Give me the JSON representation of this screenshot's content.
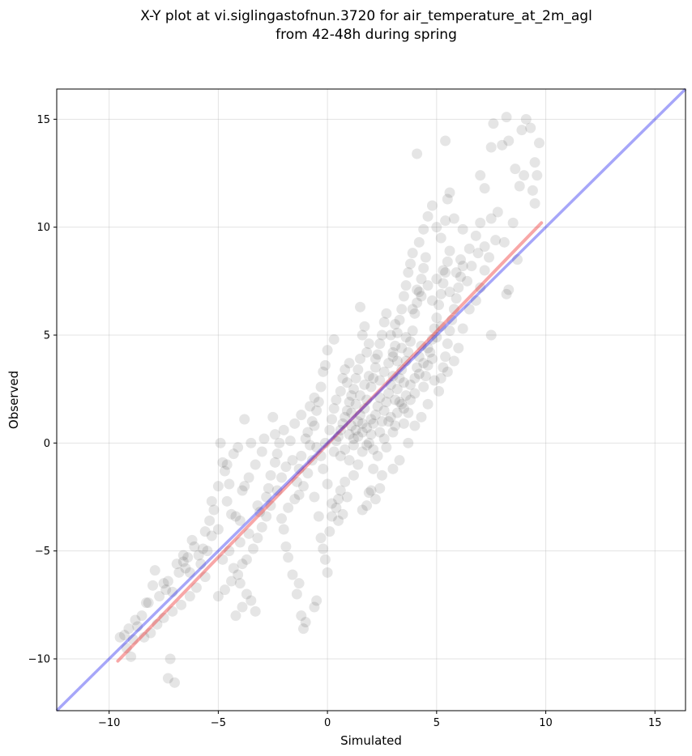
{
  "chart_data": {
    "type": "scatter",
    "title": [
      "X-Y plot at vi.siglingastofnun.3720 for air_temperature_at_2m_agl",
      "from 42-48h during spring"
    ],
    "xlabel": "Simulated",
    "ylabel": "Observed",
    "xlim": [
      -12.4,
      16.4
    ],
    "ylim": [
      -12.4,
      16.4
    ],
    "xticks": [
      -10,
      -5,
      0,
      5,
      10,
      15
    ],
    "yticks": [
      -10,
      -5,
      0,
      5,
      10,
      15
    ],
    "xtick_labels": [
      "−10",
      "−5",
      "0",
      "5",
      "10",
      "15"
    ],
    "ytick_labels": [
      "−10",
      "−5",
      "0",
      "5",
      "10",
      "15"
    ],
    "grid": true,
    "point_color": "#000000",
    "identity_line": {
      "color": "#0000ee",
      "x": [
        -12.4,
        16.4
      ],
      "y": [
        -12.4,
        16.4
      ]
    },
    "fit_line": {
      "color": "#ee2222",
      "x": [
        -9.6,
        9.8
      ],
      "y": [
        -10.1,
        10.2
      ]
    },
    "points": [
      [
        -9.5,
        -9.0
      ],
      [
        -9.3,
        -8.9
      ],
      [
        -9.1,
        -8.6
      ],
      [
        -8.8,
        -8.2
      ],
      [
        -8.7,
        -8.5
      ],
      [
        -9.0,
        -9.9
      ],
      [
        -8.5,
        -8.0
      ],
      [
        -8.2,
        -7.4
      ],
      [
        -8.0,
        -6.6
      ],
      [
        -7.9,
        -5.9
      ],
      [
        -7.5,
        -6.5
      ],
      [
        -7.3,
        -6.4
      ],
      [
        -7.1,
        -6.9
      ],
      [
        -7.2,
        -10.0
      ],
      [
        -7.3,
        -10.9
      ],
      [
        -7.0,
        -11.1
      ],
      [
        -6.9,
        -5.6
      ],
      [
        -6.6,
        -5.5
      ],
      [
        -6.4,
        -5.3
      ],
      [
        -6.2,
        -4.5
      ],
      [
        -6.1,
        -4.8
      ],
      [
        -5.9,
        -5.2
      ],
      [
        -5.7,
        -4.9
      ],
      [
        -5.5,
        -5.0
      ],
      [
        -5.3,
        -4.3
      ],
      [
        -5.0,
        -4.0
      ],
      [
        -5.3,
        -2.7
      ],
      [
        -5.2,
        -3.1
      ],
      [
        -5.0,
        -2.0
      ],
      [
        -4.9,
        0.0
      ],
      [
        -4.7,
        -1.3
      ],
      [
        -4.6,
        -1.0
      ],
      [
        -4.4,
        -3.3
      ],
      [
        -4.2,
        -3.4
      ],
      [
        -4.0,
        -3.6
      ],
      [
        -3.8,
        -2.0
      ],
      [
        -3.9,
        -2.2
      ],
      [
        -3.6,
        -1.6
      ],
      [
        -4.3,
        -0.5
      ],
      [
        -4.1,
        -0.2
      ],
      [
        -3.5,
        0.0
      ],
      [
        -3.8,
        1.1
      ],
      [
        -3.6,
        -4.2
      ],
      [
        -4.0,
        -4.6
      ],
      [
        -4.3,
        -5.8
      ],
      [
        -4.0,
        -6.5
      ],
      [
        -3.7,
        -7.0
      ],
      [
        -3.5,
        -7.3
      ],
      [
        -3.3,
        -7.8
      ],
      [
        -3.9,
        -7.6
      ],
      [
        -4.2,
        -8.0
      ],
      [
        -3.2,
        -2.9
      ],
      [
        -3.1,
        -3.2
      ],
      [
        -2.8,
        -2.5
      ],
      [
        -2.7,
        -2.1
      ],
      [
        -2.6,
        -1.5
      ],
      [
        -2.4,
        -0.9
      ],
      [
        -2.3,
        -0.5
      ],
      [
        -2.2,
        0.0
      ],
      [
        -2.5,
        1.2
      ],
      [
        -2.4,
        0.4
      ],
      [
        -2.1,
        -3.5
      ],
      [
        -2.0,
        -4.0
      ],
      [
        -1.9,
        -4.8
      ],
      [
        -1.8,
        -5.3
      ],
      [
        -1.6,
        -6.1
      ],
      [
        -1.4,
        -7.0
      ],
      [
        -1.3,
        -6.5
      ],
      [
        -1.2,
        -8.0
      ],
      [
        -1.1,
        -8.6
      ],
      [
        -1.0,
        -8.3
      ],
      [
        -1.8,
        -3.0
      ],
      [
        -1.5,
        -2.6
      ],
      [
        -1.4,
        -1.8
      ],
      [
        -1.3,
        -1.2
      ],
      [
        -1.2,
        -0.6
      ],
      [
        -1.0,
        0.2
      ],
      [
        -0.9,
        0.5
      ],
      [
        -0.8,
        -0.1
      ],
      [
        -0.7,
        1.0
      ],
      [
        -0.6,
        0.8
      ],
      [
        -0.5,
        1.5
      ],
      [
        -0.4,
        1.9
      ],
      [
        -0.3,
        2.6
      ],
      [
        -0.2,
        3.3
      ],
      [
        -0.1,
        3.6
      ],
      [
        0.0,
        4.3
      ],
      [
        0.3,
        4.8
      ],
      [
        -0.6,
        -2.5
      ],
      [
        -0.4,
        -3.4
      ],
      [
        -0.3,
        -4.4
      ],
      [
        -0.2,
        -4.9
      ],
      [
        -0.1,
        -5.4
      ],
      [
        0.0,
        -6.0
      ],
      [
        0.1,
        -4.1
      ],
      [
        -0.5,
        -7.3
      ],
      [
        -0.6,
        -7.6
      ],
      [
        0.2,
        -3.4
      ],
      [
        0.4,
        -3.0
      ],
      [
        0.5,
        -2.6
      ],
      [
        0.6,
        -2.2
      ],
      [
        0.8,
        -1.8
      ],
      [
        0.3,
        -0.4
      ],
      [
        0.4,
        0.1
      ],
      [
        0.5,
        0.3
      ],
      [
        0.6,
        0.6
      ],
      [
        0.7,
        0.9
      ],
      [
        0.8,
        1.2
      ],
      [
        0.9,
        1.5
      ],
      [
        1.0,
        1.9
      ],
      [
        1.1,
        2.2
      ],
      [
        1.2,
        2.5
      ],
      [
        1.0,
        0.4
      ],
      [
        1.1,
        0.8
      ],
      [
        1.2,
        0.2
      ],
      [
        1.3,
        0.6
      ],
      [
        1.4,
        1.0
      ],
      [
        1.5,
        1.3
      ],
      [
        1.6,
        0.9
      ],
      [
        1.7,
        1.6
      ],
      [
        1.3,
        3.0
      ],
      [
        1.4,
        3.4
      ],
      [
        1.5,
        3.9
      ],
      [
        1.6,
        5.0
      ],
      [
        1.7,
        5.4
      ],
      [
        1.5,
        6.3
      ],
      [
        1.8,
        4.2
      ],
      [
        1.9,
        4.6
      ],
      [
        1.2,
        -1.5
      ],
      [
        1.4,
        -1.0
      ],
      [
        1.6,
        -0.4
      ],
      [
        1.8,
        -0.1
      ],
      [
        1.9,
        -2.3
      ],
      [
        2.1,
        -1.2
      ],
      [
        2.3,
        -0.6
      ],
      [
        2.5,
        -1.5
      ],
      [
        2.0,
        0.4
      ],
      [
        2.1,
        0.9
      ],
      [
        2.2,
        1.3
      ],
      [
        2.3,
        1.7
      ],
      [
        2.4,
        2.1
      ],
      [
        2.5,
        1.0
      ],
      [
        2.6,
        1.5
      ],
      [
        2.7,
        1.9
      ],
      [
        2.0,
        2.6
      ],
      [
        2.1,
        3.0
      ],
      [
        2.2,
        3.5
      ],
      [
        2.3,
        4.1
      ],
      [
        2.4,
        4.6
      ],
      [
        2.5,
        5.0
      ],
      [
        2.6,
        5.6
      ],
      [
        2.7,
        6.0
      ],
      [
        2.8,
        2.3
      ],
      [
        2.9,
        2.7
      ],
      [
        3.0,
        3.1
      ],
      [
        3.1,
        2.0
      ],
      [
        3.2,
        2.5
      ],
      [
        3.3,
        3.0
      ],
      [
        3.4,
        3.4
      ],
      [
        3.5,
        2.8
      ],
      [
        2.8,
        1.0
      ],
      [
        3.0,
        0.5
      ],
      [
        3.2,
        1.4
      ],
      [
        3.4,
        1.8
      ],
      [
        3.5,
        0.9
      ],
      [
        3.6,
        2.2
      ],
      [
        3.7,
        1.4
      ],
      [
        3.8,
        2.0
      ],
      [
        3.6,
        3.8
      ],
      [
        3.7,
        4.2
      ],
      [
        3.8,
        4.7
      ],
      [
        3.9,
        5.2
      ],
      [
        4.0,
        3.0
      ],
      [
        4.1,
        3.5
      ],
      [
        4.2,
        4.0
      ],
      [
        4.3,
        4.5
      ],
      [
        3.0,
        4.0
      ],
      [
        3.1,
        4.5
      ],
      [
        3.2,
        5.1
      ],
      [
        3.3,
        5.7
      ],
      [
        3.4,
        6.2
      ],
      [
        3.5,
        6.8
      ],
      [
        3.6,
        7.3
      ],
      [
        3.7,
        7.9
      ],
      [
        3.8,
        8.3
      ],
      [
        3.9,
        8.8
      ],
      [
        4.0,
        6.0
      ],
      [
        4.1,
        6.5
      ],
      [
        4.2,
        7.0
      ],
      [
        4.3,
        7.6
      ],
      [
        4.4,
        8.1
      ],
      [
        4.5,
        8.6
      ],
      [
        4.4,
        2.6
      ],
      [
        4.5,
        3.1
      ],
      [
        4.6,
        3.6
      ],
      [
        4.7,
        4.2
      ],
      [
        4.8,
        4.8
      ],
      [
        4.9,
        5.3
      ],
      [
        5.0,
        5.8
      ],
      [
        5.1,
        6.4
      ],
      [
        5.2,
        6.9
      ],
      [
        5.3,
        7.4
      ],
      [
        5.4,
        7.9
      ],
      [
        5.5,
        8.4
      ],
      [
        5.6,
        8.9
      ],
      [
        5.2,
        3.0
      ],
      [
        5.3,
        3.5
      ],
      [
        5.4,
        4.0
      ],
      [
        5.5,
        4.6
      ],
      [
        5.6,
        5.2
      ],
      [
        5.7,
        5.7
      ],
      [
        5.8,
        6.2
      ],
      [
        5.9,
        6.7
      ],
      [
        6.0,
        7.2
      ],
      [
        6.1,
        7.7
      ],
      [
        6.2,
        8.2
      ],
      [
        4.2,
        9.3
      ],
      [
        4.4,
        9.9
      ],
      [
        4.6,
        10.5
      ],
      [
        4.8,
        11.0
      ],
      [
        5.0,
        10.0
      ],
      [
        5.2,
        9.5
      ],
      [
        5.4,
        10.3
      ],
      [
        5.6,
        11.6
      ],
      [
        5.8,
        10.4
      ],
      [
        5.5,
        11.3
      ],
      [
        4.1,
        13.4
      ],
      [
        5.4,
        14.0
      ],
      [
        6.2,
        9.9
      ],
      [
        6.5,
        9.0
      ],
      [
        6.8,
        9.6
      ],
      [
        7.0,
        10.2
      ],
      [
        7.2,
        11.8
      ],
      [
        7.5,
        10.4
      ],
      [
        7.8,
        10.7
      ],
      [
        7.0,
        12.4
      ],
      [
        8.0,
        13.8
      ],
      [
        8.3,
        14.0
      ],
      [
        8.6,
        12.7
      ],
      [
        8.9,
        14.5
      ],
      [
        9.1,
        15.0
      ],
      [
        9.3,
        14.6
      ],
      [
        9.5,
        13.0
      ],
      [
        9.7,
        13.9
      ],
      [
        7.6,
        14.8
      ],
      [
        8.2,
        15.1
      ],
      [
        7.5,
        13.7
      ],
      [
        8.8,
        11.9
      ],
      [
        9.0,
        12.4
      ],
      [
        9.4,
        11.7
      ],
      [
        9.6,
        12.4
      ],
      [
        9.5,
        11.1
      ],
      [
        8.5,
        10.2
      ],
      [
        8.1,
        9.3
      ],
      [
        8.7,
        8.5
      ],
      [
        8.3,
        7.1
      ],
      [
        8.2,
        6.9
      ],
      [
        7.5,
        5.0
      ],
      [
        7.2,
        8.0
      ],
      [
        7.0,
        7.2
      ],
      [
        6.8,
        6.6
      ],
      [
        6.5,
        6.2
      ],
      [
        6.2,
        5.3
      ],
      [
        6.0,
        4.4
      ],
      [
        5.8,
        3.8
      ],
      [
        5.5,
        3.3
      ],
      [
        5.1,
        2.4
      ],
      [
        4.9,
        2.9
      ],
      [
        4.6,
        1.8
      ],
      [
        4.3,
        1.2
      ],
      [
        4.0,
        0.8
      ],
      [
        3.7,
        0.0
      ],
      [
        3.3,
        -0.8
      ],
      [
        3.0,
        -1.2
      ],
      [
        2.7,
        -0.2
      ],
      [
        2.4,
        -2.1
      ],
      [
        2.2,
        -2.6
      ],
      [
        2.0,
        -2.2
      ],
      [
        1.8,
        -2.9
      ],
      [
        1.6,
        -3.1
      ],
      [
        0.9,
        -2.5
      ],
      [
        0.7,
        -3.3
      ],
      [
        0.5,
        -3.6
      ],
      [
        0.2,
        -2.8
      ],
      [
        0.0,
        -1.9
      ],
      [
        -0.2,
        -1.2
      ],
      [
        -0.1,
        0.0
      ],
      [
        0.1,
        0.6
      ],
      [
        0.2,
        1.1
      ],
      [
        0.3,
        1.6
      ],
      [
        0.4,
        2.0
      ],
      [
        0.6,
        2.4
      ],
      [
        0.7,
        3.0
      ],
      [
        0.8,
        3.4
      ],
      [
        1.0,
        3.7
      ],
      [
        0.9,
        2.8
      ],
      [
        -0.3,
        -0.6
      ],
      [
        -0.5,
        -0.2
      ],
      [
        -0.7,
        -0.8
      ],
      [
        -0.9,
        -1.4
      ],
      [
        -1.1,
        -2.0
      ],
      [
        -1.3,
        -2.4
      ],
      [
        -1.6,
        -0.8
      ],
      [
        -1.9,
        -1.1
      ],
      [
        -2.1,
        -1.6
      ],
      [
        -2.3,
        -2.2
      ],
      [
        -2.6,
        -2.9
      ],
      [
        -2.8,
        -3.4
      ],
      [
        -3.0,
        -3.9
      ],
      [
        -3.2,
        -4.4
      ],
      [
        -3.4,
        -4.9
      ],
      [
        -3.7,
        -5.4
      ],
      [
        -3.9,
        -5.6
      ],
      [
        -4.1,
        -6.1
      ],
      [
        -4.4,
        -6.4
      ],
      [
        -4.7,
        -6.8
      ],
      [
        -5.0,
        -7.1
      ],
      [
        -4.8,
        -5.4
      ],
      [
        -4.5,
        -5.0
      ],
      [
        -5.6,
        -6.2
      ],
      [
        -6.0,
        -6.7
      ],
      [
        -6.3,
        -7.1
      ],
      [
        -6.7,
        -7.5
      ],
      [
        -7.1,
        -7.8
      ],
      [
        -7.5,
        -8.1
      ],
      [
        -7.8,
        -8.4
      ],
      [
        -8.1,
        -8.8
      ],
      [
        -8.4,
        -9.0
      ],
      [
        -6.8,
        -6.0
      ],
      [
        -6.5,
        -5.8
      ],
      [
        -5.4,
        -3.6
      ],
      [
        -5.6,
        -4.1
      ],
      [
        -4.6,
        -2.7
      ],
      [
        -4.5,
        -1.9
      ],
      [
        -4.8,
        -0.9
      ],
      [
        -3.3,
        -1.0
      ],
      [
        -3.0,
        -0.4
      ],
      [
        -2.9,
        0.2
      ],
      [
        -2.0,
        0.6
      ],
      [
        -1.7,
        0.1
      ],
      [
        -1.5,
        0.9
      ],
      [
        -1.2,
        1.3
      ],
      [
        -0.8,
        1.7
      ],
      [
        -0.6,
        2.1
      ],
      [
        1.9,
        0.0
      ],
      [
        2.1,
        -0.3
      ],
      [
        2.4,
        0.5
      ],
      [
        2.6,
        0.2
      ],
      [
        2.9,
        1.2
      ],
      [
        3.1,
        0.8
      ],
      [
        3.3,
        1.9
      ],
      [
        3.5,
        1.6
      ],
      [
        3.8,
        2.7
      ],
      [
        4.0,
        2.3
      ],
      [
        4.2,
        3.2
      ],
      [
        4.4,
        3.7
      ],
      [
        4.6,
        4.4
      ],
      [
        4.8,
        3.9
      ],
      [
        5.0,
        4.9
      ],
      [
        5.2,
        5.4
      ],
      [
        3.9,
        6.2
      ],
      [
        4.1,
        7.1
      ],
      [
        4.3,
        6.8
      ],
      [
        4.6,
        7.3
      ],
      [
        4.8,
        6.6
      ],
      [
        5.0,
        7.6
      ],
      [
        5.3,
        8.0
      ],
      [
        5.6,
        7.0
      ],
      [
        5.9,
        7.9
      ],
      [
        6.1,
        8.5
      ],
      [
        6.4,
        7.5
      ],
      [
        6.6,
        8.2
      ],
      [
        6.9,
        8.8
      ],
      [
        7.2,
        9.1
      ],
      [
        7.4,
        8.6
      ],
      [
        7.7,
        9.4
      ],
      [
        2.6,
        3.3
      ],
      [
        2.8,
        3.7
      ],
      [
        3.0,
        4.2
      ],
      [
        3.2,
        3.8
      ],
      [
        3.4,
        4.4
      ],
      [
        3.6,
        4.9
      ],
      [
        2.9,
        5.0
      ],
      [
        3.1,
        5.5
      ],
      [
        1.7,
        2.7
      ],
      [
        1.9,
        3.1
      ],
      [
        2.2,
        3.9
      ],
      [
        2.4,
        2.9
      ],
      [
        1.1,
        1.4
      ],
      [
        1.3,
        1.8
      ],
      [
        1.5,
        2.2
      ],
      [
        1.8,
        2.0
      ],
      [
        0.6,
        -0.6
      ],
      [
        0.8,
        -0.3
      ],
      [
        1.0,
        -0.8
      ],
      [
        1.2,
        -0.1
      ],
      [
        1.4,
        0.3
      ],
      [
        1.6,
        0.5
      ],
      [
        1.8,
        0.7
      ],
      [
        2.0,
        1.1
      ],
      [
        -6.6,
        -5.2
      ],
      [
        -7.7,
        -7.1
      ],
      [
        -8.3,
        -7.4
      ],
      [
        -8.9,
        -9.1
      ],
      [
        -9.2,
        -9.5
      ],
      [
        -5.8,
        -5.6
      ],
      [
        -6.3,
        -6.0
      ],
      [
        -7.4,
        -6.8
      ]
    ]
  }
}
